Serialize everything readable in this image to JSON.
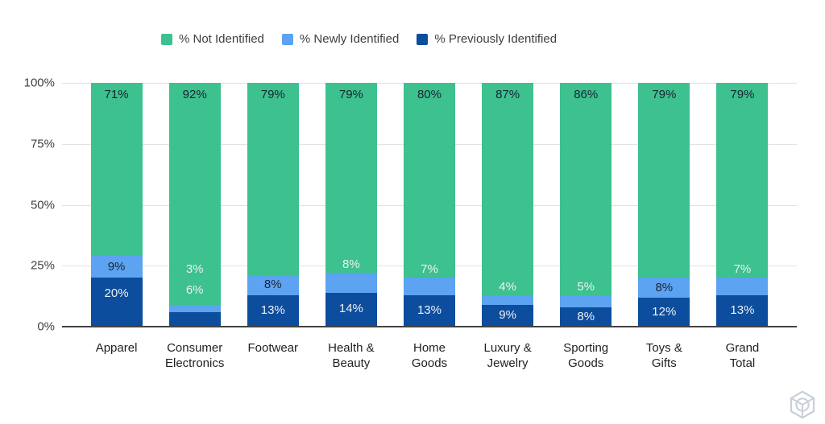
{
  "chart_data": {
    "type": "bar",
    "stacked": true,
    "title": "",
    "categories": [
      "Apparel",
      "Consumer Electronics",
      "Footwear",
      "Health & Beauty",
      "Home Goods",
      "Luxury & Jewelry",
      "Sporting Goods",
      "Toys & Gifts",
      "Grand Total"
    ],
    "category_display_lines": [
      [
        "Apparel"
      ],
      [
        "Consumer",
        "Electronics"
      ],
      [
        "Footwear"
      ],
      [
        "Health &",
        "Beauty"
      ],
      [
        "Home",
        "Goods"
      ],
      [
        "Luxury &",
        "Jewelry"
      ],
      [
        "Sporting",
        "Goods"
      ],
      [
        "Toys &",
        "Gifts"
      ],
      [
        "Grand",
        "Total"
      ]
    ],
    "series": [
      {
        "name": "% Not Identified",
        "color": "#3cc18f",
        "values": [
          71,
          92,
          79,
          79,
          80,
          87,
          86,
          79,
          79
        ]
      },
      {
        "name": "% Newly Identified",
        "color": "#5ca3f1",
        "values": [
          9,
          3,
          8,
          8,
          7,
          4,
          5,
          8,
          7
        ]
      },
      {
        "name": "% Previously Identified",
        "color": "#0c4d9d",
        "values": [
          20,
          6,
          13,
          14,
          13,
          9,
          8,
          12,
          13
        ]
      }
    ],
    "value_suffix": "%",
    "ylim": [
      0,
      100
    ],
    "y_ticks": [
      "0%",
      "25%",
      "50%",
      "75%",
      "100%"
    ],
    "grid": true,
    "legend_position": "top",
    "bar_label_placement": {
      "newly": [
        "inside",
        "above-high",
        "inside",
        "above",
        "above",
        "above",
        "above",
        "inside",
        "above"
      ],
      "previously": [
        "inside",
        "above",
        "inside",
        "inside",
        "inside",
        "inside",
        "inside",
        "inside",
        "inside"
      ]
    }
  },
  "colors": {
    "background": "#ffffff",
    "grid_line": "#e2e2e2",
    "axis_line": "#424242",
    "axis_text": "#3f3f3f",
    "legend_text": "#3c4043",
    "label_dark": "#1b2430",
    "label_light": "#eef1f5",
    "watermark": "#c9d0db"
  },
  "watermark_icon": "cube-logo-icon"
}
